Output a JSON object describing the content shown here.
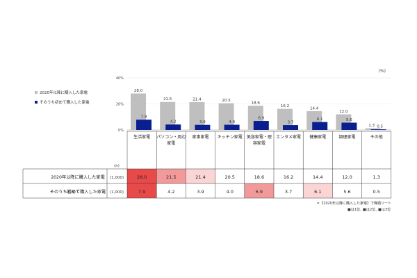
{
  "chart_data": {
    "type": "bar",
    "unit_label": "(%)",
    "y_ticks": [
      "40%",
      "20%",
      "0%"
    ],
    "ylim": [
      0,
      40
    ],
    "categories": [
      [
        "生活家電"
      ],
      [
        "パソコン・周辺",
        "家電"
      ],
      [
        "家事家電"
      ],
      [
        "キッチン家電"
      ],
      [
        "美容家電・理",
        "容家電"
      ],
      [
        "エンタメ家電"
      ],
      [
        "健康家電"
      ],
      [
        "調理家電"
      ],
      [
        "その他"
      ]
    ],
    "series": [
      {
        "name": "2020年以降に購入した家電",
        "color": "#bfbfbf",
        "values": [
          28.0,
          21.5,
          21.4,
          20.5,
          18.6,
          16.2,
          14.4,
          12.0,
          1.3
        ]
      },
      {
        "name": "そのうち初めて購入した家電",
        "color": "#0a1f8f",
        "values": [
          7.9,
          4.2,
          3.9,
          4.0,
          6.9,
          3.7,
          6.1,
          5.6,
          0.5
        ]
      }
    ],
    "table": {
      "n_header": "(n)",
      "rows": [
        {
          "label": "2020年以降に購入した家電",
          "n": "(1,000)",
          "cells": [
            "28.0",
            "21.5",
            "21.4",
            "20.5",
            "18.6",
            "16.2",
            "14.4",
            "12.0",
            "1.3"
          ],
          "ranks": [
            1,
            2,
            3,
            0,
            0,
            0,
            0,
            0,
            0
          ]
        },
        {
          "label_parts": [
            "そのうち",
            "初めて",
            "購入した家電"
          ],
          "n": "(1,000)",
          "cells": [
            "7.9",
            "4.2",
            "3.9",
            "4.0",
            "6.9",
            "3.7",
            "6.1",
            "5.6",
            "0.5"
          ],
          "ranks": [
            1,
            0,
            0,
            0,
            2,
            0,
            3,
            0,
            0
          ]
        }
      ]
    },
    "rank_colors": {
      "1": "#e84a4a",
      "2": "#f29a9a",
      "3": "#fbd4d4"
    },
    "sort_note": "＊【2020年以降に購入した家電】で降順ソート",
    "rank_legend": [
      {
        "marker": "■",
        "text": "は1位、",
        "rank": "1"
      },
      {
        "marker": "■",
        "text": "は2位、",
        "rank": "2"
      },
      {
        "marker": "■",
        "text": "は3位",
        "rank": "3"
      }
    ]
  }
}
